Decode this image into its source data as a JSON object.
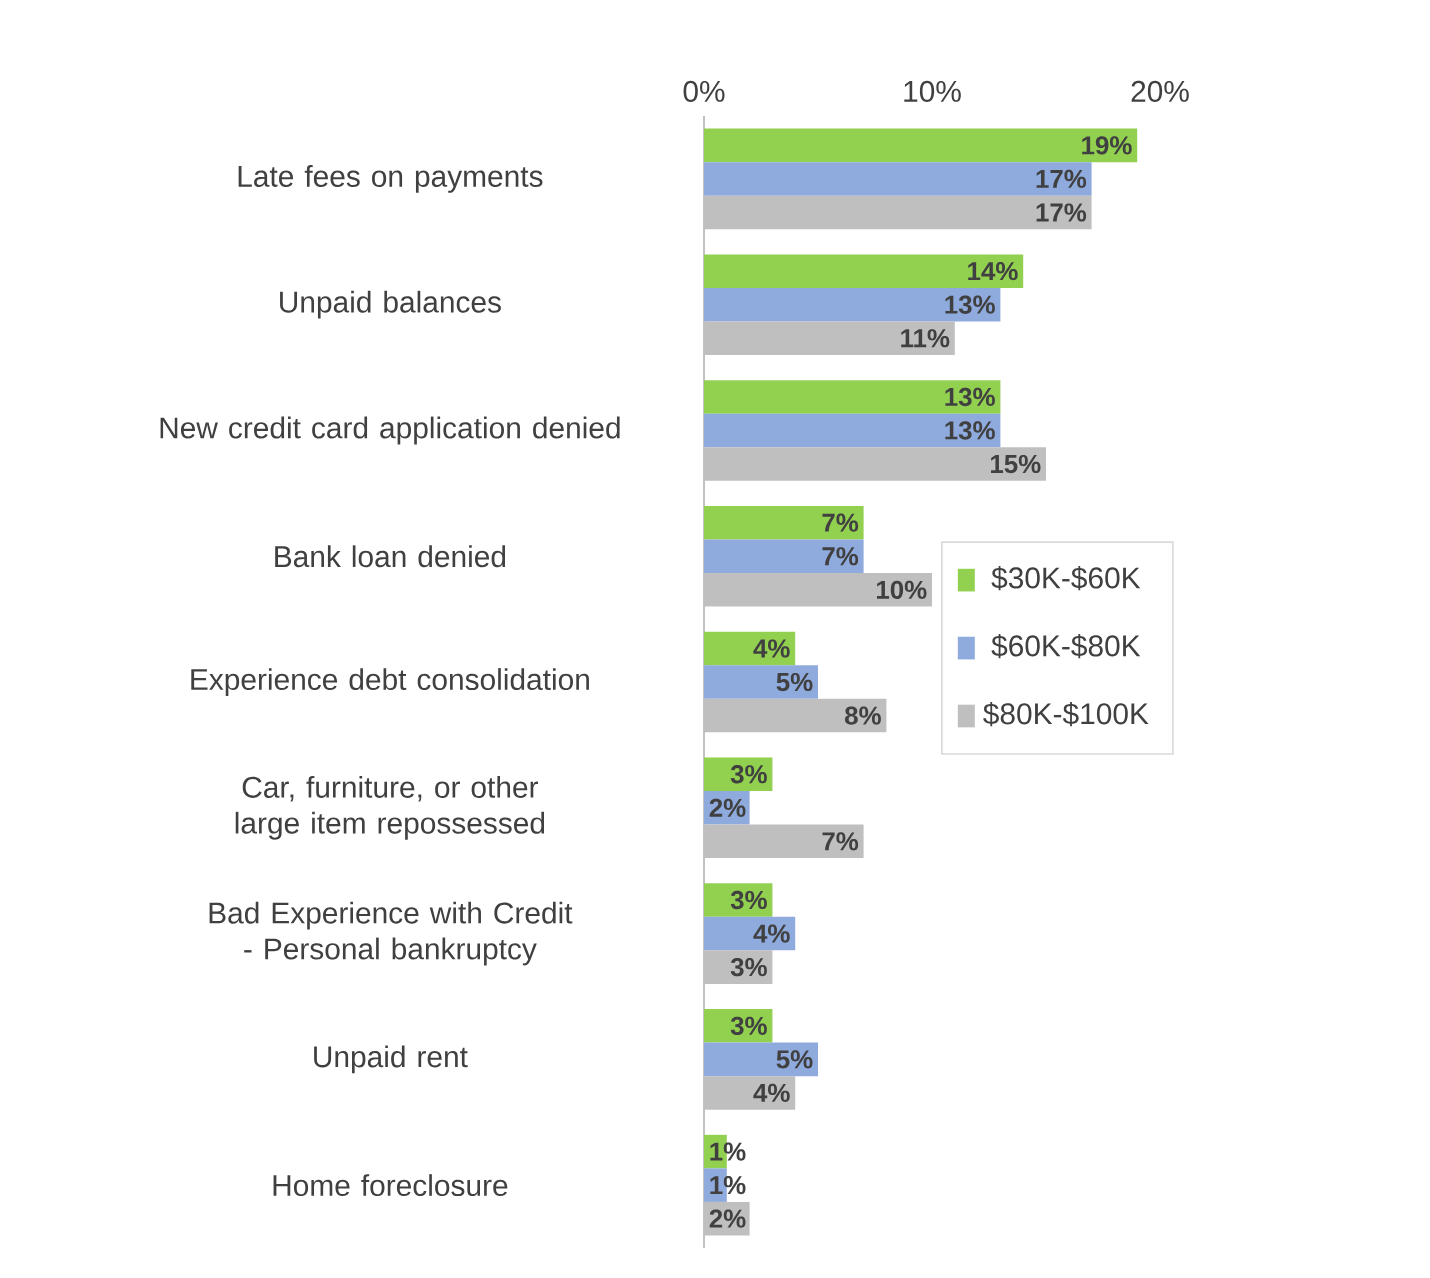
{
  "chart_data": {
    "type": "bar",
    "orientation": "horizontal",
    "categories": [
      "Late fees on payments",
      "Unpaid balances",
      "New credit card application denied",
      "Bank loan denied",
      "Experience debt consolidation",
      "Car, furniture, or other large item repossessed",
      "Bad Experience with Credit - Personal bankruptcy",
      "Unpaid rent",
      "Home foreclosure"
    ],
    "series": [
      {
        "name": "$30K-$60K",
        "color": "#92d050",
        "values": [
          19,
          14,
          13,
          7,
          4,
          3,
          3,
          3,
          1
        ],
        "value_labels": [
          "19%",
          "14%",
          "13%",
          "7%",
          "4%",
          "3%",
          "3%",
          "3%",
          "1%"
        ]
      },
      {
        "name": "$60K-$80K",
        "color": "#8faadc",
        "values": [
          17,
          13,
          13,
          7,
          5,
          2,
          4,
          5,
          1
        ],
        "value_labels": [
          "17%",
          "13%",
          "13%",
          "7%",
          "5%",
          "2%",
          "4%",
          "5%",
          "1%"
        ]
      },
      {
        "name": "$80K-$100K",
        "color": "#bfbfbf",
        "values": [
          17,
          11,
          15,
          10,
          8,
          7,
          3,
          4,
          2
        ],
        "value_labels": [
          "17%",
          "11%",
          "15%",
          "10%",
          "8%",
          "7%",
          "3%",
          "4%",
          "2%"
        ]
      }
    ],
    "xlim": [
      0,
      20
    ],
    "xticks": [
      {
        "value": 0,
        "label": "0%"
      },
      {
        "value": 10,
        "label": "10%"
      },
      {
        "value": 20,
        "label": "20%"
      }
    ],
    "legend": "right",
    "grid": false
  }
}
